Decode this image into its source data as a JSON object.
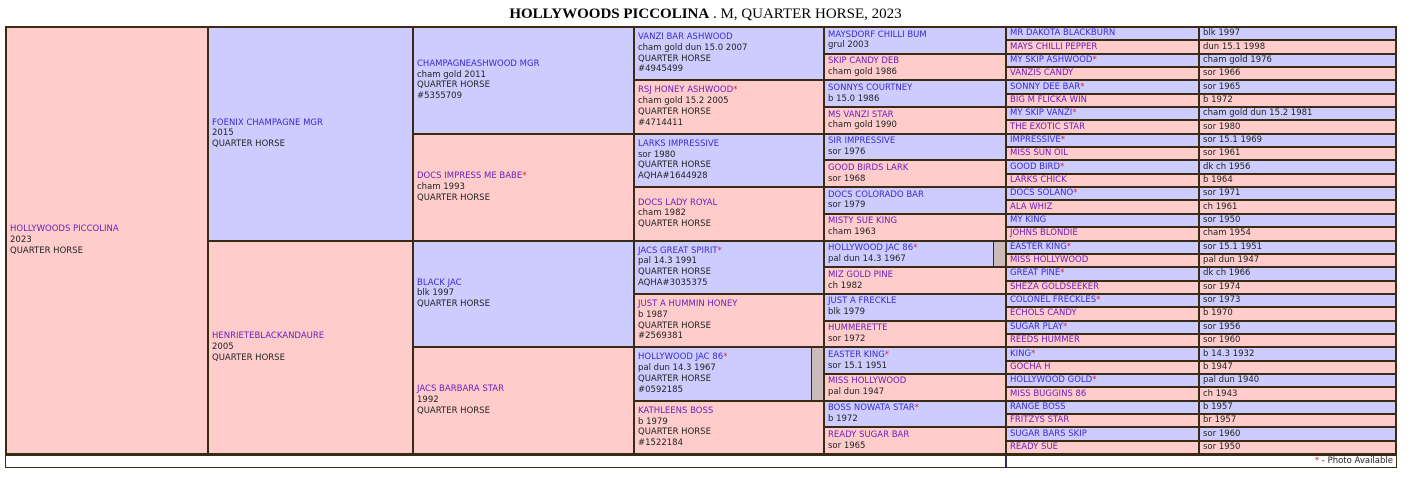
{
  "title": {
    "name": "HOLLYWOODS PICCOLINA",
    "rest": " . M, QUARTER HORSE, 2023"
  },
  "colors": {
    "male": "#ccccff",
    "female": "#ffcccc",
    "photo_star": "#e0202a"
  },
  "generations": [
    [
      {
        "name": "HOLLYWOODS PICCOLINA",
        "sex": "f",
        "lines": [
          "2023",
          "QUARTER HORSE"
        ]
      }
    ],
    [
      {
        "name": "FOENIX CHAMPAGNE MGR",
        "sex": "m",
        "lines": [
          "2015",
          "QUARTER HORSE"
        ]
      },
      {
        "name": "HENRIETEBLACKANDAURE",
        "sex": "f",
        "lines": [
          "2005",
          "QUARTER HORSE"
        ]
      }
    ],
    [
      {
        "name": "CHAMPAGNEASHWOOD MGR",
        "sex": "m",
        "lines": [
          "cham gold 2011",
          "QUARTER HORSE",
          "#5355709"
        ]
      },
      {
        "name": "DOCS IMPRESS ME BABE",
        "star": true,
        "sex": "f",
        "lines": [
          "cham 1993",
          "QUARTER HORSE"
        ]
      },
      {
        "name": "BLACK JAC",
        "sex": "m",
        "lines": [
          "blk 1997",
          "QUARTER HORSE"
        ]
      },
      {
        "name": "JACS BARBARA STAR",
        "sex": "f",
        "lines": [
          "1992",
          "QUARTER HORSE"
        ]
      }
    ],
    [
      {
        "name": "VANZI BAR ASHWOOD",
        "sex": "m",
        "lines": [
          "cham gold dun 15.0 2007",
          "QUARTER HORSE",
          "#4945499"
        ]
      },
      {
        "name": "RSJ HONEY ASHWOOD",
        "star": true,
        "sex": "f",
        "lines": [
          "cham gold 15.2 2005",
          "QUARTER HORSE",
          "#4714411"
        ]
      },
      {
        "name": "LARKS IMPRESSIVE",
        "sex": "m",
        "lines": [
          "sor 1980",
          "QUARTER HORSE",
          "AQHA#1644928"
        ]
      },
      {
        "name": "DOCS LADY ROYAL",
        "sex": "f",
        "lines": [
          "cham 1982",
          "QUARTER HORSE"
        ]
      },
      {
        "name": "JACS GREAT SPIRIT",
        "star": true,
        "sex": "m",
        "lines": [
          "pal 14.3 1991",
          "QUARTER HORSE",
          "AQHA#3035375"
        ]
      },
      {
        "name": "JUST A HUMMIN HONEY",
        "sex": "f",
        "lines": [
          "b 1987",
          "QUARTER HORSE",
          "#2569381"
        ]
      },
      {
        "name": "HOLLYWOOD JAC 86",
        "star": true,
        "sex": "m",
        "dup": true,
        "lines": [
          "pal dun 14.3 1967",
          "QUARTER HORSE",
          "#0592185"
        ]
      },
      {
        "name": "KATHLEENS BOSS",
        "sex": "f",
        "lines": [
          "b 1979",
          "QUARTER HORSE",
          "#1522184"
        ]
      }
    ],
    [
      {
        "name": "MAYSDORF CHILLI BUM",
        "sex": "m",
        "lines": [
          "grul 2003"
        ]
      },
      {
        "name": "SKIP CANDY DEB",
        "sex": "f",
        "lines": [
          "cham gold 1986"
        ]
      },
      {
        "name": "SONNYS COURTNEY",
        "sex": "m",
        "lines": [
          "b 15.0 1986"
        ]
      },
      {
        "name": "MS VANZI STAR",
        "sex": "f",
        "lines": [
          "cham gold 1990"
        ]
      },
      {
        "name": "SIR IMPRESSIVE",
        "sex": "m",
        "lines": [
          "sor 1976"
        ]
      },
      {
        "name": "GOOD BIRDS LARK",
        "sex": "f",
        "lines": [
          "sor 1968"
        ]
      },
      {
        "name": "DOCS COLORADO BAR",
        "sex": "m",
        "lines": [
          "sor 1979"
        ]
      },
      {
        "name": "MISTY SUE KING",
        "sex": "f",
        "lines": [
          "cham 1963"
        ]
      },
      {
        "name": "HOLLYWOOD JAC 86",
        "star": true,
        "sex": "m",
        "dup": true,
        "lines": [
          "pal dun 14.3 1967"
        ]
      },
      {
        "name": "MIZ GOLD PINE",
        "sex": "f",
        "lines": [
          "ch 1982"
        ]
      },
      {
        "name": "JUST A FRECKLE",
        "sex": "m",
        "lines": [
          "blk 1979"
        ]
      },
      {
        "name": "HUMMERETTE",
        "sex": "f",
        "lines": [
          "sor 1972"
        ]
      },
      {
        "name": "EASTER KING",
        "star": true,
        "sex": "m",
        "lines": [
          "sor 15.1 1951"
        ]
      },
      {
        "name": "MISS HOLLYWOOD",
        "sex": "f",
        "lines": [
          "pal dun 1947"
        ]
      },
      {
        "name": "BOSS NOWATA STAR",
        "star": true,
        "sex": "m",
        "lines": [
          "b 1972"
        ]
      },
      {
        "name": "READY SUGAR BAR",
        "sex": "f",
        "lines": [
          "sor 1965"
        ]
      }
    ],
    [
      {
        "name": "MR DAKOTA BLACKBURN",
        "sex": "m",
        "detail": "blk 1997"
      },
      {
        "name": "MAYS CHILLI PEPPER",
        "sex": "f",
        "detail": "dun 15.1 1998"
      },
      {
        "name": "MY SKIP ASHWOOD",
        "star": true,
        "sex": "m",
        "detail": "cham gold 1976"
      },
      {
        "name": "VANZIS CANDY",
        "sex": "f",
        "detail": "sor 1966"
      },
      {
        "name": "SONNY DEE BAR",
        "star": true,
        "sex": "m",
        "detail": "sor 1965"
      },
      {
        "name": "BIG M FLICKA WIN",
        "sex": "f",
        "detail": "b 1972"
      },
      {
        "name": "MY SKIP VANZI",
        "star": true,
        "sex": "m",
        "detail": "cham gold dun 15.2 1981"
      },
      {
        "name": "THE EXOTIC STAR",
        "sex": "f",
        "detail": "sor 1980"
      },
      {
        "name": "IMPRESSIVE",
        "star": true,
        "sex": "m",
        "detail": "sor 15.1 1969"
      },
      {
        "name": "MISS SUN OIL",
        "sex": "f",
        "detail": "sor 1961"
      },
      {
        "name": "GOOD BIRD",
        "star": true,
        "sex": "m",
        "detail": "dk ch 1956"
      },
      {
        "name": "LARKS CHICK",
        "sex": "f",
        "detail": "b 1964"
      },
      {
        "name": "DOCS SOLANO",
        "star": true,
        "sex": "m",
        "detail": "sor 1971"
      },
      {
        "name": "ALA WHIZ",
        "sex": "f",
        "detail": "ch 1961"
      },
      {
        "name": "MY KING",
        "sex": "m",
        "detail": "sor 1950"
      },
      {
        "name": "JOHNS BLONDIE",
        "sex": "f",
        "detail": "cham 1954"
      },
      {
        "name": "EASTER KING",
        "star": true,
        "sex": "m",
        "detail": "sor 15.1 1951"
      },
      {
        "name": "MISS HOLLYWOOD",
        "sex": "f",
        "detail": "pal dun 1947"
      },
      {
        "name": "GREAT PINE",
        "star": true,
        "sex": "m",
        "detail": "dk ch 1966"
      },
      {
        "name": "SHEZA GOLDSEEKER",
        "sex": "f",
        "detail": "sor 1974"
      },
      {
        "name": "COLONEL FRECKLES",
        "star": true,
        "sex": "m",
        "detail": "sor 1973"
      },
      {
        "name": "ECHOLS CANDY",
        "sex": "f",
        "detail": "b 1970"
      },
      {
        "name": "SUGAR PLAY",
        "star": true,
        "sex": "m",
        "detail": "sor 1956"
      },
      {
        "name": "REEDS HUMMER",
        "sex": "f",
        "detail": "sor 1960"
      },
      {
        "name": "KING",
        "star": true,
        "sex": "m",
        "detail": "b 14.3 1932"
      },
      {
        "name": "GOCHA H",
        "sex": "f",
        "detail": "b 1947"
      },
      {
        "name": "HOLLYWOOD GOLD",
        "star": true,
        "sex": "m",
        "detail": "pal dun 1940"
      },
      {
        "name": "MISS BUGGINS 86",
        "sex": "f",
        "detail": "ch 1943"
      },
      {
        "name": "RANGE BOSS",
        "sex": "m",
        "detail": "b 1957"
      },
      {
        "name": "FRITZYS STAR",
        "sex": "f",
        "detail": "br 1957"
      },
      {
        "name": "SUGAR BARS SKIP",
        "sex": "m",
        "detail": "sor 1960"
      },
      {
        "name": "READY SUE",
        "sex": "f",
        "detail": "sor 1950"
      }
    ]
  ],
  "star_symbol": "*",
  "footer": {
    "star": "*",
    "legend": " - Photo Available"
  }
}
